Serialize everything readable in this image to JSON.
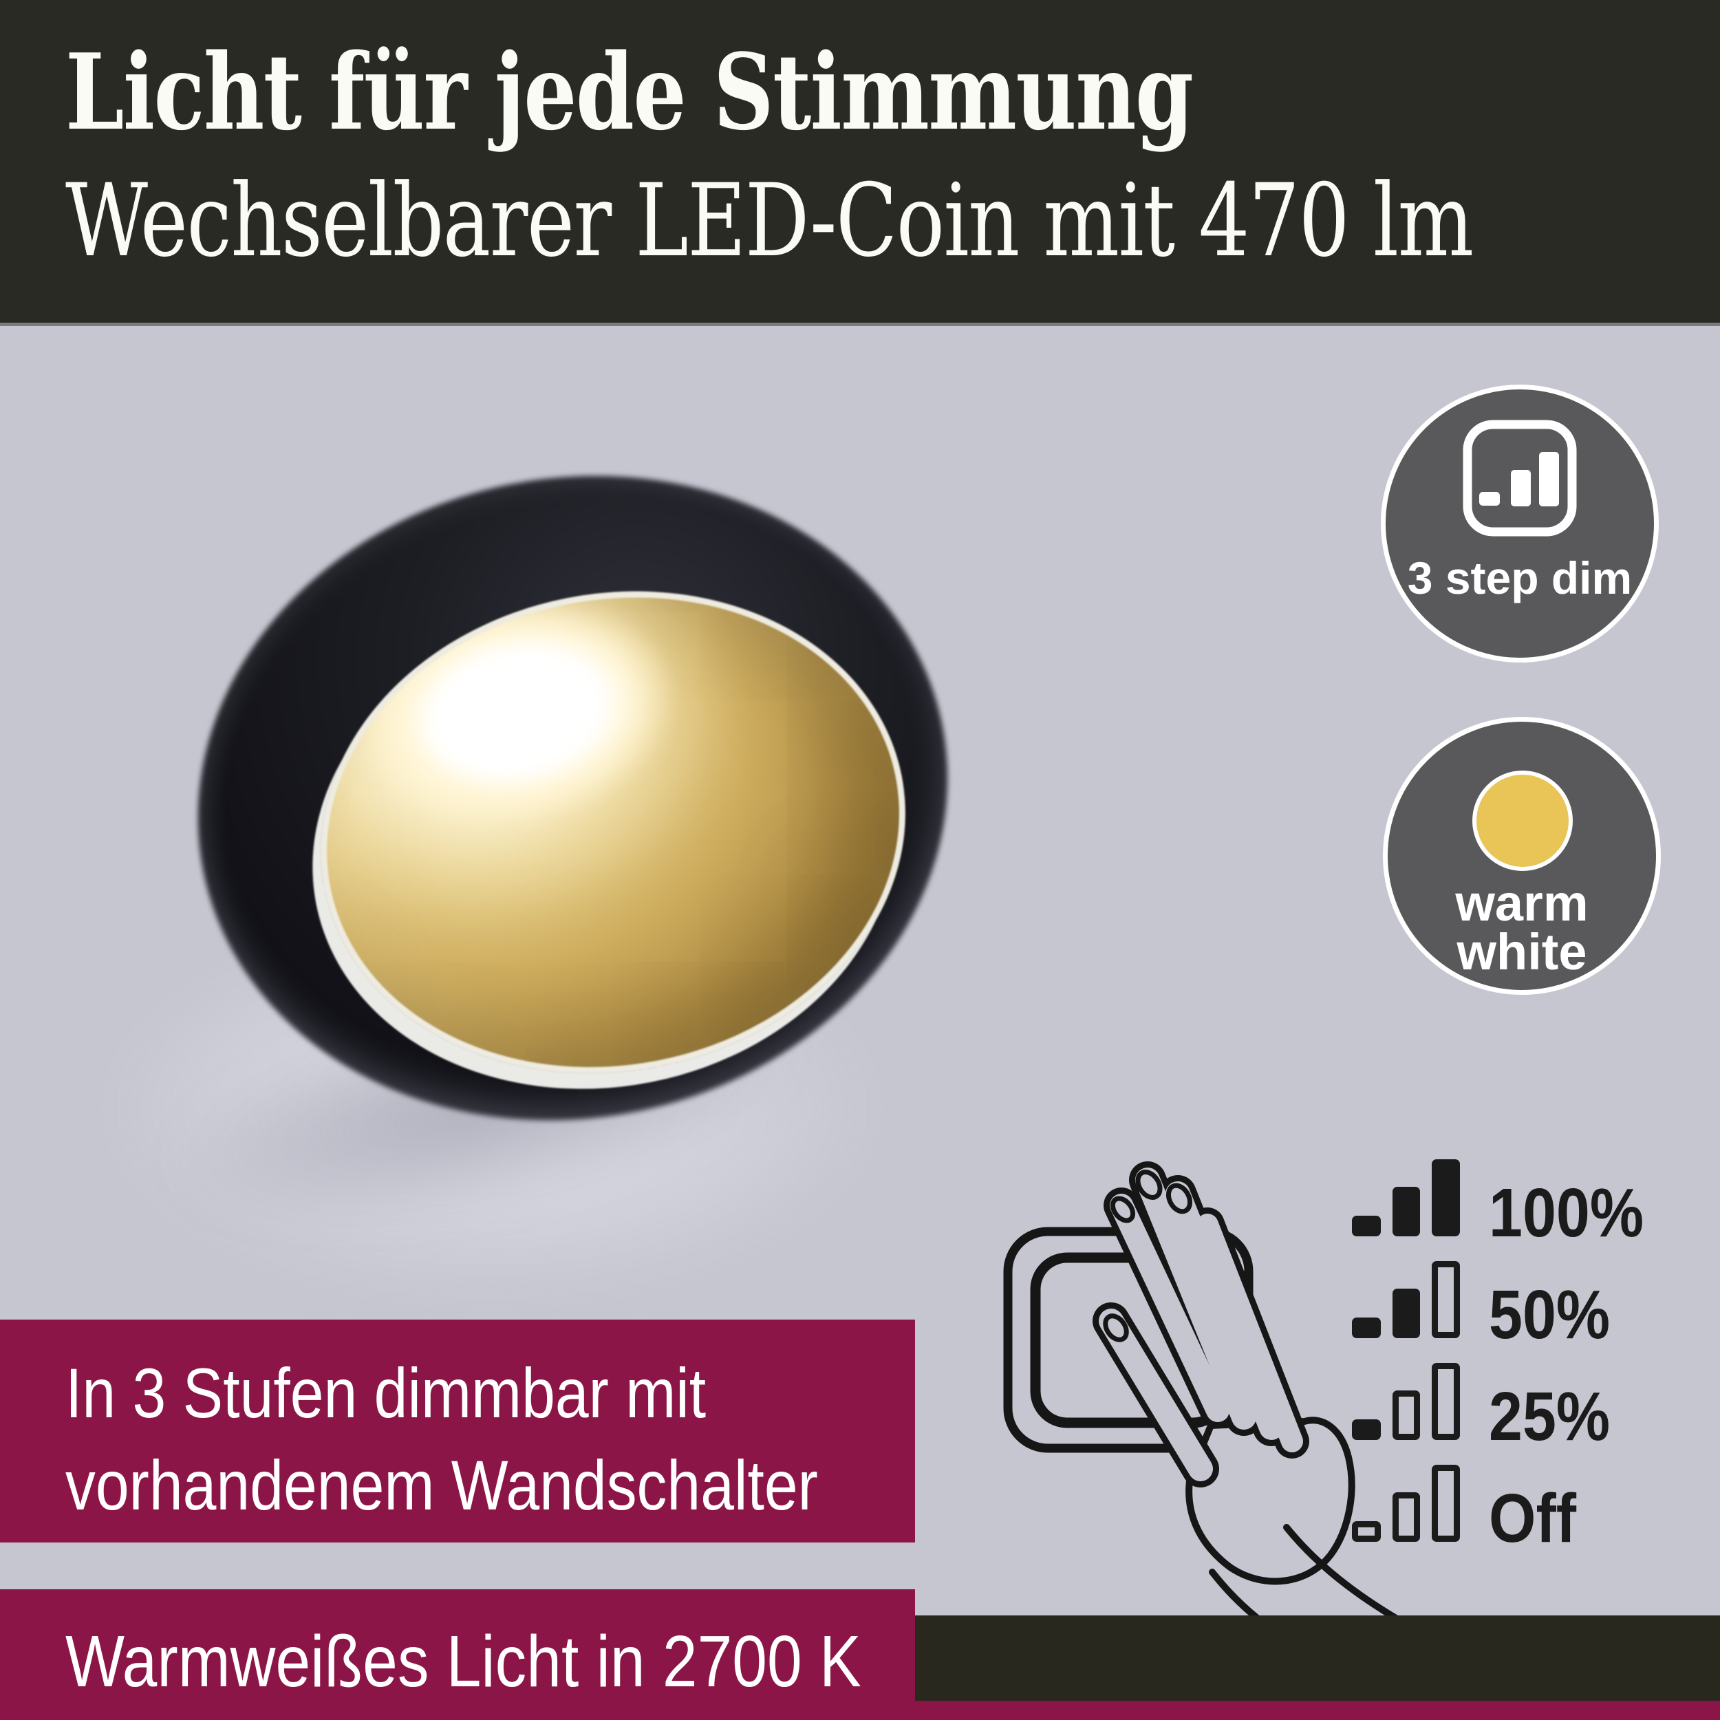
{
  "header": {
    "title": "Licht für jede Stimmung",
    "subtitle": "Wechselbarer LED-Coin mit 470 lm"
  },
  "badges": [
    {
      "label": "3 step dim",
      "icon": "3-step-dim-bars-icon"
    },
    {
      "lines": [
        "warm",
        "white"
      ],
      "icon": "warm-white-dot-icon",
      "dot_color": "#e9c457"
    }
  ],
  "dim_levels": [
    {
      "label": "100%",
      "bars": [
        true,
        true,
        true
      ]
    },
    {
      "label": "50%",
      "bars": [
        true,
        true,
        false
      ]
    },
    {
      "label": "25%",
      "bars": [
        true,
        false,
        false
      ]
    },
    {
      "label": "Off",
      "bars": [
        false,
        false,
        false
      ]
    }
  ],
  "feature_boxes": [
    {
      "lines": [
        "In 3 Stufen dimmbar mit",
        "vorhandenem Wandschalter"
      ]
    },
    {
      "lines": [
        "Warmweißes Licht in 2700 K"
      ]
    }
  ],
  "illustration": {
    "name": "hand-pressing-wall-switch"
  },
  "photo": {
    "name": "recessed-led-downlight-black-gold-warm-glow"
  },
  "colors": {
    "berry": "#8c1548",
    "header_bg": "#2a2a24",
    "page_bg": "#c6c6d1",
    "badge_gray": "#59585a",
    "warm_yellow": "#e9c457",
    "gold": "#cfae5f",
    "ring_black": "#14141a"
  }
}
